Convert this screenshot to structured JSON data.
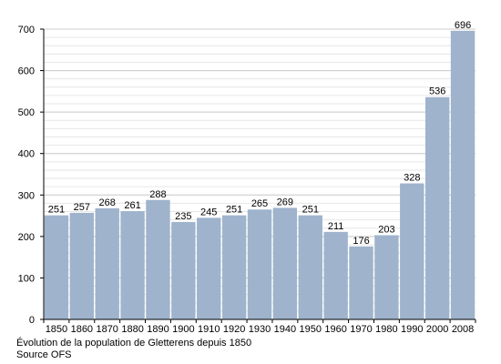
{
  "chart_data": {
    "type": "bar",
    "categories": [
      "1850",
      "1860",
      "1870",
      "1880",
      "1890",
      "1900",
      "1910",
      "1920",
      "1930",
      "1940",
      "1950",
      "1960",
      "1970",
      "1980",
      "1990",
      "2000",
      "2008"
    ],
    "values": [
      251,
      257,
      268,
      261,
      288,
      235,
      245,
      251,
      265,
      269,
      251,
      211,
      176,
      203,
      328,
      536,
      696
    ],
    "ylim": [
      0,
      700
    ],
    "yticks": [
      0,
      100,
      200,
      300,
      400,
      500,
      600,
      700
    ],
    "minor_step": 20,
    "grid": true,
    "data_labels": true,
    "bar_color": "#9fb3cc",
    "grid_color": "#cccccc",
    "caption": "Évolution de la population de Gletterens depuis 1850",
    "source": "Source OFS"
  }
}
